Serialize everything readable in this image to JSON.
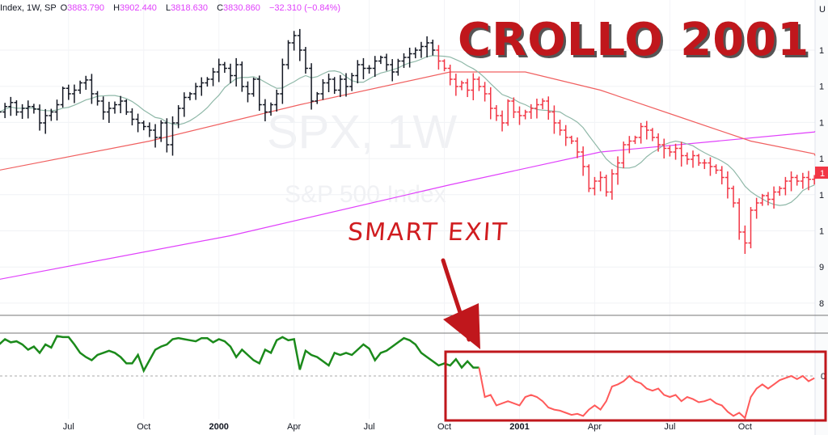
{
  "legend": {
    "symbol": "Index, 1W, SP",
    "open_label": "O",
    "open": "3883.790",
    "high_label": "H",
    "high": "3902.440",
    "low_label": "L",
    "low": "3818.630",
    "close_label": "C",
    "close": "3830.860",
    "change": "−32.310 (−0.84%)"
  },
  "watermark": {
    "symbol": "SPX, 1W",
    "name": "S&P 500 Index"
  },
  "annotations": {
    "title": "CROLLO 2001",
    "smart_exit": "SMART EXIT"
  },
  "price_axis_labels": [
    "U",
    "1",
    "1",
    "1",
    "1",
    "1",
    "1",
    "9",
    "8"
  ],
  "price_tag": "1",
  "indicator_axis_label": "0",
  "colors": {
    "up_regime": "#131722",
    "down_regime": "#f23645",
    "ma_short": "#8fb8a8",
    "ma_mid": "#f06060",
    "ma_long": "#e040fb",
    "indicator_pos": "#1b8a1b",
    "indicator_neg": "#ff5a5a",
    "annotation": "#c0171c"
  },
  "chart_data": {
    "type": "bar",
    "subtype": "ohlc-weekly",
    "x_tick_labels": [
      "Jul",
      "Oct",
      "2000",
      "Apr",
      "Jul",
      "Oct",
      "2001",
      "Apr",
      "Jul",
      "Oct"
    ],
    "x_tick_week_index": [
      12,
      25,
      38,
      51,
      64,
      77,
      90,
      103,
      116,
      129
    ],
    "y_range": [
      780,
      1560
    ],
    "grid": true,
    "closes": [
      1330,
      1345,
      1356,
      1330,
      1340,
      1345,
      1338,
      1300,
      1320,
      1330,
      1350,
      1395,
      1380,
      1390,
      1410,
      1418,
      1380,
      1360,
      1330,
      1340,
      1350,
      1360,
      1330,
      1310,
      1300,
      1290,
      1280,
      1260,
      1300,
      1240,
      1300,
      1340,
      1370,
      1380,
      1400,
      1410,
      1420,
      1440,
      1460,
      1450,
      1430,
      1460,
      1400,
      1380,
      1420,
      1350,
      1330,
      1350,
      1380,
      1460,
      1520,
      1540,
      1500,
      1450,
      1360,
      1380,
      1410,
      1420,
      1390,
      1420,
      1400,
      1430,
      1460,
      1450,
      1450,
      1470,
      1480,
      1460,
      1440,
      1470,
      1480,
      1490,
      1500,
      1510,
      1520,
      1500,
      1470,
      1450,
      1420,
      1400,
      1410,
      1390,
      1420,
      1400,
      1380,
      1340,
      1320,
      1300,
      1360,
      1330,
      1320,
      1330,
      1340,
      1350,
      1360,
      1330,
      1300,
      1280,
      1260,
      1250,
      1220,
      1180,
      1120,
      1140,
      1150,
      1110,
      1160,
      1190,
      1240,
      1250,
      1260,
      1290,
      1280,
      1260,
      1240,
      1230,
      1220,
      1230,
      1210,
      1200,
      1210,
      1190,
      1190,
      1180,
      1170,
      1150,
      1120,
      1080,
      1000,
      970,
      1060,
      1080,
      1100,
      1090,
      1110,
      1120,
      1140,
      1150,
      1140,
      1150,
      1145,
      1148
    ],
    "down_regime_from_index": 76,
    "ma_short_period": 10,
    "ma_mid": [
      [
        0,
        1170
      ],
      [
        26,
        1250
      ],
      [
        52,
        1350
      ],
      [
        78,
        1440
      ],
      [
        91,
        1440
      ],
      [
        104,
        1390
      ],
      [
        117,
        1320
      ],
      [
        130,
        1250
      ],
      [
        141,
        1215
      ]
    ],
    "ma_long": [
      [
        0,
        870
      ],
      [
        40,
        990
      ],
      [
        78,
        1130
      ],
      [
        104,
        1220
      ],
      [
        141,
        1275
      ]
    ],
    "indicator": {
      "baseline": 0,
      "y_range": [
        -40,
        38
      ],
      "negative_from_index": 84,
      "values": [
        30,
        35,
        32,
        33,
        30,
        25,
        28,
        22,
        30,
        27,
        38,
        37,
        37,
        30,
        22,
        18,
        15,
        20,
        22,
        24,
        22,
        18,
        12,
        12,
        20,
        5,
        15,
        25,
        28,
        30,
        35,
        36,
        35,
        34,
        33,
        36,
        36,
        32,
        35,
        33,
        28,
        18,
        25,
        20,
        15,
        12,
        25,
        22,
        34,
        37,
        34,
        35,
        6,
        24,
        20,
        18,
        14,
        10,
        22,
        20,
        22,
        20,
        25,
        30,
        26,
        15,
        22,
        24,
        28,
        32,
        36,
        34,
        30,
        22,
        18,
        14,
        10,
        12,
        10,
        16,
        8,
        14,
        8,
        8,
        -20,
        -18,
        -28,
        -26,
        -24,
        -26,
        -28,
        -20,
        -18,
        -20,
        -24,
        -30,
        -32,
        -33,
        -35,
        -37,
        -36,
        -38,
        -32,
        -28,
        -32,
        -24,
        -10,
        -8,
        -5,
        0,
        -5,
        -7,
        -12,
        -14,
        -12,
        -18,
        -20,
        -18,
        -24,
        -20,
        -22,
        -25,
        -24,
        -22,
        -26,
        -28,
        -34,
        -38,
        -35,
        -40,
        -20,
        -12,
        -8,
        -12,
        -8,
        -4,
        -2,
        0,
        -3,
        0,
        -5,
        -2
      ]
    }
  }
}
